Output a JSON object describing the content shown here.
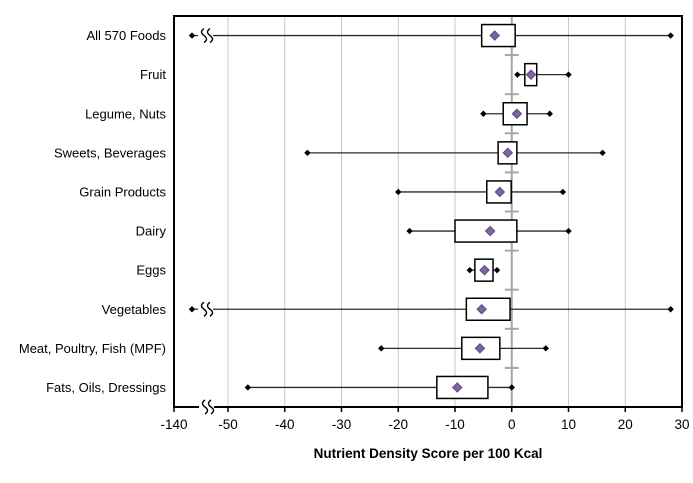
{
  "chart_data": {
    "type": "boxplot",
    "orientation": "horizontal",
    "title": "",
    "xlabel": "Nutrient Density Score per 100 Kcal",
    "ylabel": "",
    "x_ticks": [
      -140,
      -50,
      -40,
      -30,
      -20,
      -10,
      0,
      10,
      20,
      30
    ],
    "x_tick_labels": [
      "-140",
      "-50",
      "-40",
      "-30",
      "-20",
      "-10",
      "0",
      "10",
      "20",
      "30"
    ],
    "axis_break_between": [
      "-140",
      "-50"
    ],
    "visible_value_range": [
      -50,
      30
    ],
    "grid": "vertical-light-gray",
    "legend": "none",
    "categories": [
      "All 570 Foods",
      "Fruit",
      "Legume, Nuts",
      "Sweets, Beverages",
      "Grain Products",
      "Dairy",
      "Eggs",
      "Vegetables",
      "Meat, Poultry, Fish (MPF)",
      "Fats, Oils, Dressings"
    ],
    "series": [
      {
        "label": "All 570 Foods",
        "min": -137,
        "q1": -5.3,
        "mean": -3,
        "q3": 0.6,
        "max": 28,
        "min_off_scale": true
      },
      {
        "label": "Fruit",
        "min": 1,
        "q1": 2.3,
        "mean": 3.4,
        "q3": 4.4,
        "max": 10,
        "min_off_scale": false
      },
      {
        "label": "Legume, Nuts",
        "min": -5,
        "q1": -1.5,
        "mean": 0.9,
        "q3": 2.7,
        "max": 6.7,
        "min_off_scale": false
      },
      {
        "label": "Sweets, Beverages",
        "min": -36,
        "q1": -2.4,
        "mean": -0.7,
        "q3": 0.9,
        "max": 16,
        "min_off_scale": false
      },
      {
        "label": "Grain Products",
        "min": -20,
        "q1": -4.4,
        "mean": -2.1,
        "q3": -0.1,
        "max": 9,
        "min_off_scale": false
      },
      {
        "label": "Dairy",
        "min": -18,
        "q1": -10,
        "mean": -3.8,
        "q3": 0.9,
        "max": 10,
        "min_off_scale": false
      },
      {
        "label": "Eggs",
        "min": -7.4,
        "q1": -6.5,
        "mean": -4.8,
        "q3": -3.3,
        "max": -2.6,
        "min_off_scale": false
      },
      {
        "label": "Vegetables",
        "min": -137,
        "q1": -8,
        "mean": -5.3,
        "q3": -0.3,
        "max": 28,
        "min_off_scale": true
      },
      {
        "label": "Meat, Poultry, Fish (MPF)",
        "min": -23,
        "q1": -8.8,
        "mean": -5.6,
        "q3": -2.1,
        "max": 6,
        "min_off_scale": false
      },
      {
        "label": "Fats, Oils, Dressings",
        "min": -46.5,
        "q1": -13.2,
        "mean": -9.6,
        "q3": -4.2,
        "max": 0,
        "min_off_scale": false
      }
    ],
    "marker_meaning": {
      "purple_diamond": "mean",
      "box": "interquartile range",
      "small_black_diamonds": "min and max"
    },
    "colors": {
      "mean_marker": "#8064A2",
      "mean_marker_edge": "#5B4A7E",
      "box_fill": "#FFFFFF",
      "box_border": "#000000",
      "whisker": "#2B2B2B",
      "grid": "#C9C9C9",
      "category_axis": "#A6A6A6",
      "plot_border": "#000000",
      "text": "#000000"
    }
  }
}
